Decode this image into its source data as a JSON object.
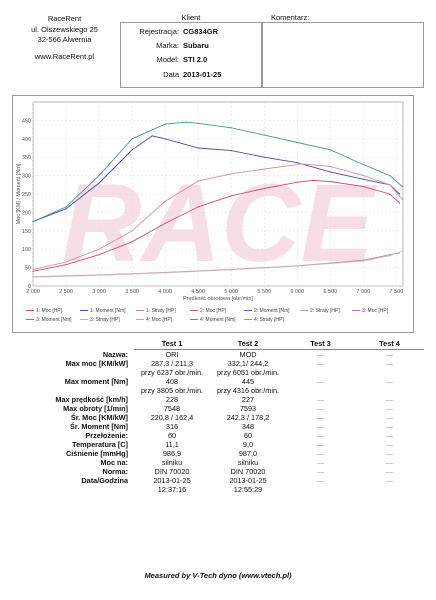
{
  "company": {
    "name": "RaceRent",
    "street": "ul. Olszewskiego 25",
    "city": "32-566 Alwernia",
    "website": "www.RaceRent.pl"
  },
  "client": {
    "title": "Klient",
    "rows": [
      {
        "label": "Rejestracja:",
        "value": "CG834GR"
      },
      {
        "label": "Marka:",
        "value": "Subaru"
      },
      {
        "label": "Model:",
        "value": "STI 2.0"
      },
      {
        "label": "Data",
        "value": "2013-01-25"
      }
    ]
  },
  "comment": {
    "title": "Komentarz:"
  },
  "watermark": "RACE",
  "chart_data": {
    "type": "line",
    "xlabel": "Prędkość obrotowa [obr/min]",
    "ylabel": "Moc [KM] / Moment [Nm]",
    "xlim": [
      2000,
      7600
    ],
    "ylim": [
      0,
      500
    ],
    "xticks": [
      "2 000",
      "2 500",
      "3 000",
      "3 500",
      "4 000",
      "4 500",
      "5 000",
      "5 500",
      "6 000",
      "6 500",
      "7 000",
      "7 500"
    ],
    "yticks": [
      "0",
      "50",
      "100",
      "150",
      "200",
      "250",
      "300",
      "350",
      "400",
      "450"
    ],
    "series": [
      {
        "name": "1: Moc [HP]",
        "color": "#d04a70",
        "x": [
          2000,
          2500,
          3000,
          3500,
          4000,
          4500,
          5000,
          5500,
          6000,
          6237,
          6500,
          7000,
          7400,
          7548
        ],
        "y": [
          40,
          58,
          85,
          120,
          170,
          215,
          245,
          265,
          282,
          287,
          284,
          270,
          250,
          226
        ]
      },
      {
        "name": "1: Moment [Nm]",
        "color": "#4a4ab0",
        "x": [
          2000,
          2500,
          3000,
          3500,
          3805,
          4000,
          4500,
          5000,
          5500,
          6000,
          6500,
          7000,
          7400,
          7548
        ],
        "y": [
          175,
          210,
          280,
          370,
          408,
          400,
          375,
          368,
          350,
          335,
          310,
          290,
          275,
          250
        ]
      },
      {
        "name": "4: Moc [HP]",
        "color": "#d890a0",
        "x": [
          2000,
          2500,
          3000,
          3500,
          4000,
          4500,
          5000,
          5500,
          6000,
          6051,
          6500,
          7000,
          7400,
          7593
        ],
        "y": [
          45,
          65,
          100,
          150,
          230,
          285,
          305,
          318,
          330,
          332,
          325,
          300,
          275,
          235
        ]
      },
      {
        "name": "4: Moment [Nm]",
        "color": "#4a9a8a",
        "x": [
          2000,
          2500,
          3000,
          3500,
          4000,
          4316,
          4500,
          5000,
          5500,
          6000,
          6500,
          7000,
          7400,
          7593
        ],
        "y": [
          175,
          215,
          300,
          400,
          440,
          445,
          442,
          430,
          410,
          390,
          370,
          330,
          300,
          270
        ]
      },
      {
        "name": "1: Straty [HP]",
        "color": "#d07a90",
        "x": [
          2000,
          3000,
          4000,
          5000,
          6000,
          7000,
          7400,
          7548
        ],
        "y": [
          25,
          30,
          37,
          45,
          55,
          70,
          85,
          90
        ]
      },
      {
        "name": "4: Straty [HP]",
        "color": "#c0c0d0",
        "x": [
          2000,
          3000,
          4000,
          5000,
          6000,
          7000,
          7400,
          7593
        ],
        "y": [
          24,
          29,
          36,
          44,
          54,
          68,
          82,
          95
        ]
      }
    ]
  },
  "legend": [
    "1: Moc [HP]",
    "1: Moment [Nm]",
    "1: Straty [HP]",
    "2: Moc [HP]",
    "2: Moment [Nm]",
    "2: Straty [HP]",
    "3: Moc [HP]",
    "3: Moment [Nm]",
    "3: Straty [HP]",
    "4: Moc [HP]",
    "4: Moment [Nm]",
    "4: Straty [HP]"
  ],
  "legend_colors": [
    "#d04a70",
    "#4a4ab0",
    "#d07a90",
    "#c86060",
    "#6060c0",
    "#c8a0b0",
    "#d060d0",
    "#a060c0",
    "#b0b0b0",
    "#d890a0",
    "#4a9a8a",
    "#9090c0"
  ],
  "table": {
    "headers": [
      "Test 1",
      "Test 2",
      "Test 3",
      "Test 4"
    ],
    "rows": [
      {
        "label": "Nazwa:",
        "v1": [
          "ORI"
        ],
        "v2": [
          "MOD"
        ]
      },
      {
        "label": "Max moc [KM/kW]",
        "v1": [
          "287,3 / 211,3",
          "przy 6237 obr./min."
        ],
        "v2": [
          "332,1/ 244,2",
          "przy 6051 obr./min."
        ]
      },
      {
        "label": "Max moment [Nm]",
        "v1": [
          "408",
          "przy 3805 obr./min."
        ],
        "v2": [
          "445",
          "przy 4316 obr./min."
        ]
      },
      {
        "label": "Max prędkość [km/h]",
        "v1": [
          "228"
        ],
        "v2": [
          "227"
        ]
      },
      {
        "label": "Max obroty [1/min]",
        "v1": [
          "7548"
        ],
        "v2": [
          "7593"
        ]
      },
      {
        "label": "Śr. Moc [KM/kW]",
        "v1": [
          "220,8 / 162,4"
        ],
        "v2": [
          "242,3 / 178,2"
        ]
      },
      {
        "label": "Śr. Moment [Nm]",
        "v1": [
          "316"
        ],
        "v2": [
          "348"
        ]
      },
      {
        "label": "Przełożenie:",
        "v1": [
          "60"
        ],
        "v2": [
          "60"
        ]
      },
      {
        "label": "Temperatura [C]",
        "v1": [
          "11,1"
        ],
        "v2": [
          "9,0"
        ]
      },
      {
        "label": "Ciśnienie [mmHg]",
        "v1": [
          "986,9"
        ],
        "v2": [
          "987,0"
        ]
      },
      {
        "label": "Moc na:",
        "v1": [
          "silniku"
        ],
        "v2": [
          "silniku"
        ]
      },
      {
        "label": "Norma:",
        "v1": [
          "DIN 70020"
        ],
        "v2": [
          "DIN 70020"
        ]
      },
      {
        "label": "Data/Godzina",
        "v1": [
          "2013-01-25",
          "12:37:16"
        ],
        "v2": [
          "2013-01-25",
          "12:55:29"
        ]
      }
    ],
    "dash": "—"
  },
  "footer": "Measured by V-Tech dyno (www.vtech.pl)"
}
